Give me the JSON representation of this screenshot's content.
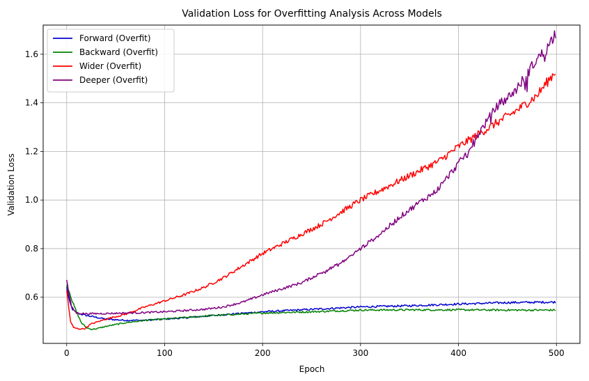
{
  "chart_data": {
    "type": "line",
    "title": "Validation Loss for Overfitting Analysis Across Models",
    "xlabel": "Epoch",
    "ylabel": "Validation Loss",
    "xlim": [
      -24,
      524
    ],
    "ylim": [
      0.41,
      1.72
    ],
    "xticks": [
      0,
      100,
      200,
      300,
      400,
      500
    ],
    "yticks": [
      0.6,
      0.8,
      1.0,
      1.2,
      1.4,
      1.6
    ],
    "ytick_labels": [
      "0.6",
      "0.8",
      "1.0",
      "1.2",
      "1.4",
      "1.6"
    ],
    "grid": true,
    "legend_position": "top-left",
    "series": [
      {
        "name": "Forward (Overfit)",
        "color": "#0000cc",
        "points": [
          [
            0,
            0.64
          ],
          [
            3,
            0.58
          ],
          [
            6,
            0.55
          ],
          [
            10,
            0.535
          ],
          [
            20,
            0.525
          ],
          [
            40,
            0.51
          ],
          [
            60,
            0.505
          ],
          [
            80,
            0.505
          ],
          [
            100,
            0.51
          ],
          [
            120,
            0.515
          ],
          [
            150,
            0.525
          ],
          [
            200,
            0.54
          ],
          [
            250,
            0.55
          ],
          [
            300,
            0.56
          ],
          [
            350,
            0.565
          ],
          [
            400,
            0.572
          ],
          [
            450,
            0.578
          ],
          [
            499,
            0.58
          ]
        ]
      },
      {
        "name": "Backward (Overfit)",
        "color": "#008000",
        "points": [
          [
            0,
            0.65
          ],
          [
            3,
            0.62
          ],
          [
            6,
            0.58
          ],
          [
            10,
            0.54
          ],
          [
            15,
            0.495
          ],
          [
            20,
            0.475
          ],
          [
            25,
            0.468
          ],
          [
            30,
            0.47
          ],
          [
            40,
            0.48
          ],
          [
            60,
            0.495
          ],
          [
            80,
            0.505
          ],
          [
            100,
            0.51
          ],
          [
            150,
            0.525
          ],
          [
            200,
            0.535
          ],
          [
            250,
            0.54
          ],
          [
            300,
            0.547
          ],
          [
            350,
            0.548
          ],
          [
            400,
            0.548
          ],
          [
            450,
            0.547
          ],
          [
            499,
            0.547
          ]
        ]
      },
      {
        "name": "Wider (Overfit)",
        "color": "#ff0000",
        "points": [
          [
            0,
            0.63
          ],
          [
            2,
            0.56
          ],
          [
            4,
            0.5
          ],
          [
            7,
            0.475
          ],
          [
            12,
            0.47
          ],
          [
            18,
            0.47
          ],
          [
            25,
            0.49
          ],
          [
            40,
            0.51
          ],
          [
            60,
            0.53
          ],
          [
            80,
            0.56
          ],
          [
            100,
            0.585
          ],
          [
            120,
            0.61
          ],
          [
            140,
            0.64
          ],
          [
            160,
            0.68
          ],
          [
            180,
            0.73
          ],
          [
            200,
            0.78
          ],
          [
            220,
            0.82
          ],
          [
            240,
            0.86
          ],
          [
            260,
            0.9
          ],
          [
            280,
            0.95
          ],
          [
            300,
            1.0
          ],
          [
            320,
            1.04
          ],
          [
            340,
            1.08
          ],
          [
            360,
            1.12
          ],
          [
            380,
            1.16
          ],
          [
            400,
            1.22
          ],
          [
            420,
            1.27
          ],
          [
            440,
            1.32
          ],
          [
            460,
            1.37
          ],
          [
            480,
            1.43
          ],
          [
            499,
            1.53
          ]
        ]
      },
      {
        "name": "Deeper (Overfit)",
        "color": "#800080",
        "points": [
          [
            0,
            0.675
          ],
          [
            2,
            0.62
          ],
          [
            5,
            0.56
          ],
          [
            10,
            0.535
          ],
          [
            20,
            0.532
          ],
          [
            40,
            0.533
          ],
          [
            60,
            0.535
          ],
          [
            80,
            0.537
          ],
          [
            100,
            0.54
          ],
          [
            120,
            0.545
          ],
          [
            140,
            0.55
          ],
          [
            160,
            0.56
          ],
          [
            180,
            0.58
          ],
          [
            200,
            0.61
          ],
          [
            220,
            0.635
          ],
          [
            240,
            0.66
          ],
          [
            260,
            0.7
          ],
          [
            280,
            0.74
          ],
          [
            300,
            0.8
          ],
          [
            320,
            0.86
          ],
          [
            340,
            0.93
          ],
          [
            360,
            0.99
          ],
          [
            375,
            1.03
          ],
          [
            380,
            1.05
          ],
          [
            390,
            1.1
          ],
          [
            400,
            1.15
          ],
          [
            410,
            1.2
          ],
          [
            420,
            1.27
          ],
          [
            430,
            1.33
          ],
          [
            440,
            1.39
          ],
          [
            450,
            1.42
          ],
          [
            460,
            1.46
          ],
          [
            470,
            1.52
          ],
          [
            480,
            1.58
          ],
          [
            490,
            1.62
          ],
          [
            499,
            1.69
          ]
        ]
      }
    ]
  }
}
